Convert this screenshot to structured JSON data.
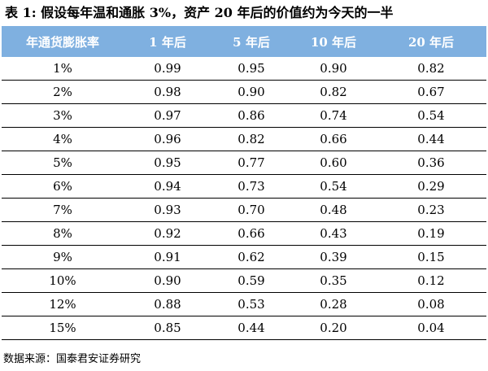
{
  "caption": "表 1: 假设每年温和通胀 3%，资产 20 年后的价值约为今天的一半",
  "table": {
    "headers": [
      "年通货膨胀率",
      "1 年后",
      "5 年后",
      "10 年后",
      "20 年后"
    ],
    "rows": [
      [
        "1%",
        "0.99",
        "0.95",
        "0.90",
        "0.82"
      ],
      [
        "2%",
        "0.98",
        "0.90",
        "0.82",
        "0.67"
      ],
      [
        "3%",
        "0.97",
        "0.86",
        "0.74",
        "0.54"
      ],
      [
        "4%",
        "0.96",
        "0.82",
        "0.66",
        "0.44"
      ],
      [
        "5%",
        "0.95",
        "0.77",
        "0.60",
        "0.36"
      ],
      [
        "6%",
        "0.94",
        "0.73",
        "0.54",
        "0.29"
      ],
      [
        "7%",
        "0.93",
        "0.70",
        "0.48",
        "0.23"
      ],
      [
        "8%",
        "0.92",
        "0.66",
        "0.43",
        "0.19"
      ],
      [
        "9%",
        "0.91",
        "0.62",
        "0.39",
        "0.15"
      ],
      [
        "10%",
        "0.90",
        "0.59",
        "0.35",
        "0.12"
      ],
      [
        "12%",
        "0.88",
        "0.53",
        "0.28",
        "0.08"
      ],
      [
        "15%",
        "0.85",
        "0.44",
        "0.20",
        "0.04"
      ]
    ]
  },
  "source": "数据来源：国泰君安证券研究",
  "colors": {
    "header_background": "#7fb0e0",
    "header_text": "#ffffff",
    "rule": "#000000"
  }
}
